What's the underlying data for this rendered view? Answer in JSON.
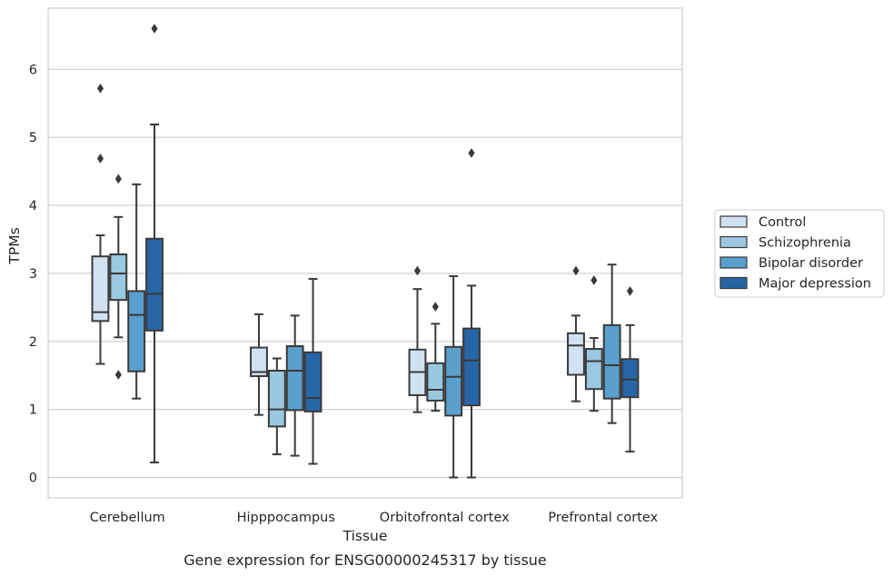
{
  "chart_data": {
    "type": "box",
    "title": "Gene expression for ENSG00000245317 by tissue",
    "xlabel": "Tissue",
    "ylabel": "TPMs",
    "ylim": [
      -0.3,
      6.9
    ],
    "yticks": [
      0,
      1,
      2,
      3,
      4,
      5,
      6
    ],
    "grid": "horizontal",
    "legend_position": "right",
    "categories": [
      "Cerebellum",
      "Hipppocampus",
      "Orbitofrontal cortex",
      "Prefrontal cortex"
    ],
    "series": [
      {
        "name": "Control",
        "color": "#d0e1f2",
        "boxes": [
          {
            "whislo": 1.67,
            "q1": 2.3,
            "med": 2.43,
            "q3": 3.25,
            "whishi": 3.56,
            "fliers": [
              4.69,
              5.72
            ]
          },
          {
            "whislo": 0.92,
            "q1": 1.49,
            "med": 1.55,
            "q3": 1.91,
            "whishi": 2.4,
            "fliers": []
          },
          {
            "whislo": 0.96,
            "q1": 1.21,
            "med": 1.55,
            "q3": 1.88,
            "whishi": 2.77,
            "fliers": [
              3.04
            ]
          },
          {
            "whislo": 1.12,
            "q1": 1.51,
            "med": 1.94,
            "q3": 2.12,
            "whishi": 2.38,
            "fliers": [
              3.04
            ]
          }
        ]
      },
      {
        "name": "Schizophrenia",
        "color": "#9ac8e0",
        "boxes": [
          {
            "whislo": 2.06,
            "q1": 2.61,
            "med": 3.0,
            "q3": 3.28,
            "whishi": 3.83,
            "fliers": [
              1.51,
              4.39
            ]
          },
          {
            "whislo": 0.34,
            "q1": 0.75,
            "med": 1.0,
            "q3": 1.57,
            "whishi": 1.75,
            "fliers": []
          },
          {
            "whislo": 0.98,
            "q1": 1.13,
            "med": 1.29,
            "q3": 1.68,
            "whishi": 2.26,
            "fliers": [
              2.51
            ]
          },
          {
            "whislo": 0.98,
            "q1": 1.3,
            "med": 1.71,
            "q3": 1.89,
            "whishi": 2.05,
            "fliers": [
              2.9
            ]
          }
        ]
      },
      {
        "name": "Bipolar disorder",
        "color": "#5a9fcd",
        "boxes": [
          {
            "whislo": 1.16,
            "q1": 1.56,
            "med": 2.39,
            "q3": 2.74,
            "whishi": 4.31,
            "fliers": []
          },
          {
            "whislo": 0.32,
            "q1": 0.99,
            "med": 1.57,
            "q3": 1.93,
            "whishi": 2.38,
            "fliers": []
          },
          {
            "whislo": 0.0,
            "q1": 0.91,
            "med": 1.48,
            "q3": 1.92,
            "whishi": 2.96,
            "fliers": []
          },
          {
            "whislo": 0.8,
            "q1": 1.16,
            "med": 1.65,
            "q3": 2.24,
            "whishi": 3.13,
            "fliers": []
          }
        ]
      },
      {
        "name": "Major depression",
        "color": "#2765a7",
        "boxes": [
          {
            "whislo": 0.22,
            "q1": 2.16,
            "med": 2.7,
            "q3": 3.51,
            "whishi": 5.19,
            "fliers": [
              6.6
            ]
          },
          {
            "whislo": 0.2,
            "q1": 0.97,
            "med": 1.17,
            "q3": 1.84,
            "whishi": 2.92,
            "fliers": []
          },
          {
            "whislo": 0.0,
            "q1": 1.06,
            "med": 1.72,
            "q3": 2.19,
            "whishi": 2.82,
            "fliers": [
              4.77
            ]
          },
          {
            "whislo": 0.38,
            "q1": 1.18,
            "med": 1.44,
            "q3": 1.74,
            "whishi": 2.24,
            "fliers": [
              2.74
            ]
          }
        ]
      }
    ]
  }
}
